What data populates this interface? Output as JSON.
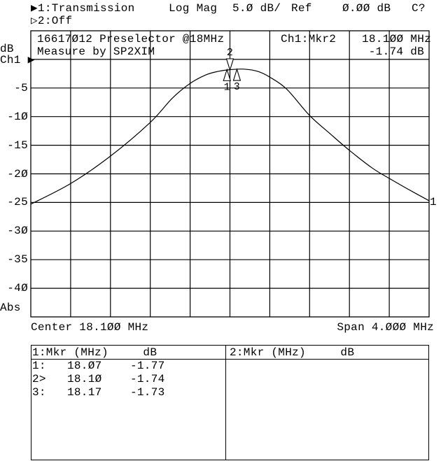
{
  "header": {
    "ch1_label": "▶1:Transmission",
    "format": "Log Mag",
    "scale": "5.Ø dB/",
    "ref_label": "Ref",
    "ref_value": "Ø.ØØ dB",
    "cal_status": "C?",
    "ch2_label": "▷2:Off"
  },
  "plot": {
    "title_line1": "16617Ø12 Preselector @18MHz",
    "title_line2": "Measure by SP2XIM",
    "active_marker_label": "Ch1:Mkr2",
    "active_marker_freq": "18.1ØØ MHz",
    "active_marker_value": "-1.74 dB",
    "unit_label": "dB",
    "channel_label": "Ch1 ▶",
    "abs_label": "Abs",
    "trace_label": "1",
    "center": "Center 18.1ØØ MHz",
    "span": "Span 4.ØØØ MHz"
  },
  "chart_data": {
    "type": "line",
    "xlabel": "",
    "ylabel": "dB",
    "xlim": [
      16.1,
      20.1
    ],
    "ylim": [
      -45,
      5
    ],
    "grid": true,
    "y_tick_labels": [
      "-5",
      "-1Ø",
      "-15",
      "-2Ø",
      "-25",
      "-3Ø",
      "-35",
      "-4Ø"
    ],
    "y_tick_values": [
      -5,
      -10,
      -15,
      -20,
      -25,
      -30,
      -35,
      -40
    ],
    "series": [
      {
        "x": [
          16.1,
          16.5,
          16.9,
          17.3,
          17.52,
          17.7,
          17.86,
          17.98,
          18.1,
          18.24,
          18.38,
          18.5,
          18.67,
          18.9,
          19.1,
          19.3,
          19.53,
          19.7,
          19.88,
          20.1
        ],
        "y": [
          -25.3,
          -21.7,
          -16.9,
          -11.0,
          -6.8,
          -4.2,
          -2.7,
          -2.1,
          -1.8,
          -1.7,
          -2.1,
          -3.1,
          -5.2,
          -9.8,
          -12.9,
          -15.9,
          -19.0,
          -20.8,
          -22.6,
          -24.7
        ]
      }
    ],
    "markers": [
      {
        "label": "1",
        "freq": 18.07,
        "value": -1.77,
        "active": false
      },
      {
        "label": "2",
        "freq": 18.1,
        "value": -1.74,
        "active": true
      },
      {
        "label": "3",
        "freq": 18.17,
        "value": -1.73,
        "active": false
      }
    ]
  },
  "marker_table": {
    "ch1_header": "1:Mkr (MHz)     dB",
    "ch2_header": "2:Mkr (MHz)     dB",
    "rows": [
      {
        "id": "1:",
        "freq": "18.Ø7",
        "value": "-1.77"
      },
      {
        "id": "2>",
        "freq": "18.1Ø",
        "value": "-1.74"
      },
      {
        "id": "3:",
        "freq": "18.17",
        "value": "-1.73"
      }
    ]
  }
}
